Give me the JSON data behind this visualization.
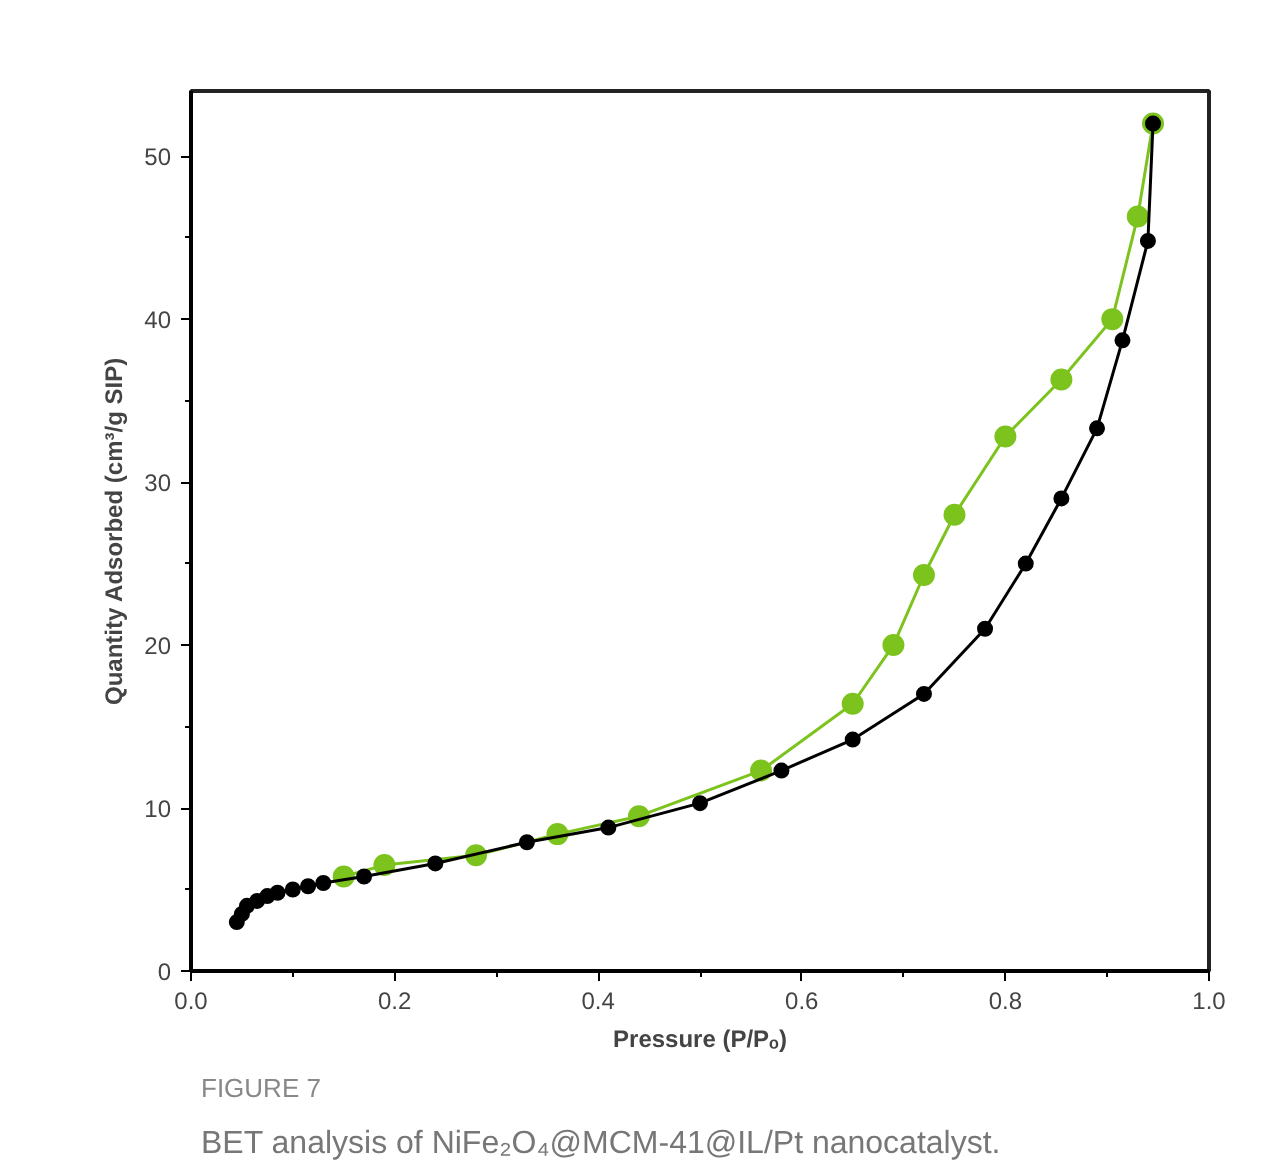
{
  "chart_data": {
    "type": "line",
    "title": "FIGURE 7",
    "subtitle": "BET analysis of NiFe₂O₄@MCM-41@IL/Pt nanocatalyst.",
    "xlabel": "Pressure (P/Pₒ)",
    "ylabel": "Quantity Adsorbed (cm³/g SIP)",
    "xlim": [
      0,
      1.0
    ],
    "xticks": [
      {
        "value": 0,
        "label": "0.0"
      },
      0.2,
      0.4,
      0.6,
      0.8,
      {
        "value": 1.0,
        "label": "1.0"
      }
    ],
    "ylim": [
      0,
      54
    ],
    "yticks": [
      0,
      10,
      20,
      30,
      40,
      50
    ],
    "grid": false,
    "marker": "circle",
    "line_style": "solid",
    "series": [
      {
        "color": "#7cc31e",
        "x": [
          0.15,
          0.19,
          0.28,
          0.36,
          0.44,
          0.56,
          0.65,
          0.69,
          0.72,
          0.75,
          0.8,
          0.855,
          0.905,
          0.93,
          0.945
        ],
        "values": [
          5.8,
          6.5,
          7.1,
          8.4,
          9.5,
          12.3,
          16.4,
          20,
          24.3,
          28,
          32.8,
          36.3,
          40,
          46.3,
          52
        ]
      },
      {
        "color": "#000000",
        "x": [
          0.045,
          0.05,
          0.055,
          0.065,
          0.075,
          0.085,
          0.1,
          0.115,
          0.13,
          0.17,
          0.24,
          0.33,
          0.41,
          0.5,
          0.58,
          0.65,
          0.72,
          0.78,
          0.82,
          0.855,
          0.89,
          0.915,
          0.94,
          0.945
        ],
        "values": [
          3,
          3.5,
          4,
          4.3,
          4.6,
          4.8,
          5,
          5.2,
          5.4,
          5.8,
          6.6,
          7.9,
          8.8,
          10.3,
          12.3,
          14.2,
          17,
          21,
          25,
          29,
          33.3,
          38.7,
          44.8,
          52
        ]
      }
    ]
  }
}
